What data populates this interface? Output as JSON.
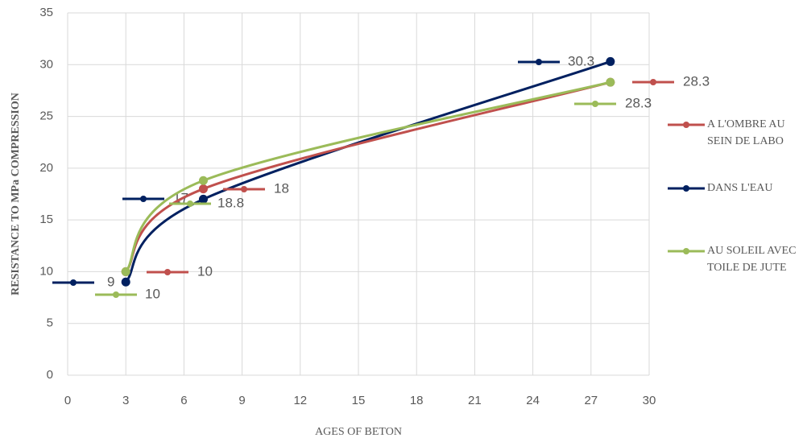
{
  "chart_data": {
    "type": "line",
    "x_label": "AGES OF BETON",
    "y_label": "RESISTANCE TO MPa COMPRESSION",
    "x": [
      3,
      7,
      28
    ],
    "series": [
      {
        "name": "A L'OMBRE AU SEIN DE LABO",
        "color": "#c0504d",
        "values": [
          10,
          18,
          28.3
        ]
      },
      {
        "name": "DANS L'EAU",
        "color": "#002060",
        "values": [
          9,
          17,
          30.3
        ]
      },
      {
        "name": "AU SOLEIL AVEC TOILE DE JUTE",
        "color": "#9bbb59",
        "values": [
          10,
          18.8,
          28.3
        ]
      }
    ],
    "xlim": [
      0,
      30
    ],
    "xticks": [
      0,
      3,
      6,
      9,
      12,
      15,
      18,
      21,
      24,
      27,
      30
    ],
    "ylim": [
      0,
      35
    ],
    "yticks": [
      0,
      5,
      10,
      15,
      20,
      25,
      30,
      35
    ],
    "grid": true,
    "smooth": true,
    "legend": "right"
  }
}
